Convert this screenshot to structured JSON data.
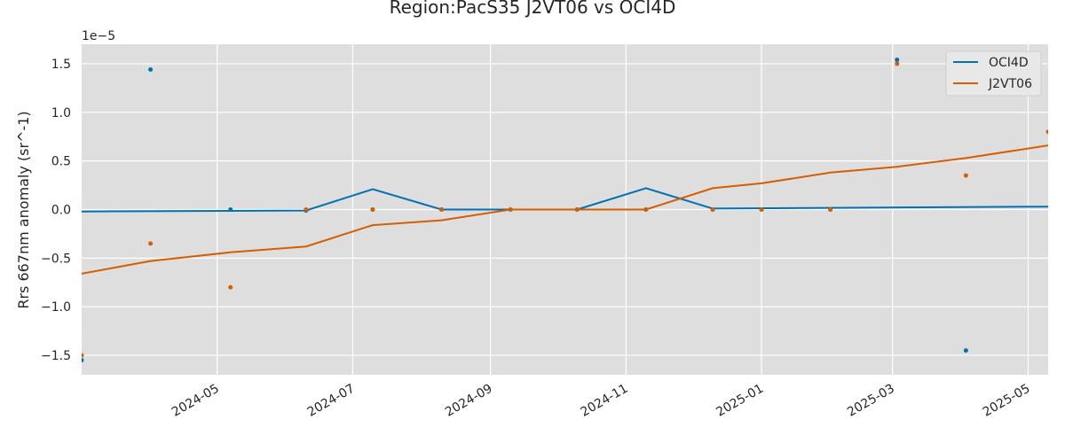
{
  "chart_data": {
    "type": "line",
    "title": "Region:PacS35 J2VT06 vs OCI4D",
    "xlabel": "",
    "ylabel": "Rrs 667nm anomaly (sr^-1)",
    "y_offset_label": "1e−5",
    "xlim": [
      "2024-03-01",
      "2025-05-10"
    ],
    "ylim": [
      -1.7,
      1.7
    ],
    "y_ticks": [
      -1.5,
      -1.0,
      -0.5,
      0.0,
      0.5,
      1.0,
      1.5
    ],
    "y_tick_labels": [
      "−1.5",
      "−1.0",
      "−0.5",
      "0.0",
      "0.5",
      "1.0",
      "1.5"
    ],
    "x_ticks": [
      "2024-05-01",
      "2024-07-01",
      "2024-09-01",
      "2024-11-01",
      "2025-01-01",
      "2025-03-01",
      "2025-05-01"
    ],
    "x_tick_labels": [
      "2024-05",
      "2024-07",
      "2024-09",
      "2024-11",
      "2025-01",
      "2025-03",
      "2025-05"
    ],
    "grid": true,
    "legend_position": "top-right",
    "series": [
      {
        "name": "OCI4D",
        "color": "#0072b2",
        "line": [
          [
            "2024-03-01",
            -0.02
          ],
          [
            "2024-06-10",
            -0.01
          ],
          [
            "2024-07-10",
            0.21
          ],
          [
            "2024-08-10",
            0.0
          ],
          [
            "2024-09-10",
            0.0
          ],
          [
            "2024-10-10",
            0.0
          ],
          [
            "2024-11-10",
            0.22
          ],
          [
            "2024-12-10",
            0.01
          ],
          [
            "2025-05-10",
            0.03
          ]
        ],
        "points": [
          [
            "2024-03-01",
            -1.55
          ],
          [
            "2024-04-01",
            1.44
          ],
          [
            "2024-05-07",
            0.0
          ],
          [
            "2024-06-10",
            -0.01
          ],
          [
            "2024-07-10",
            0.0
          ],
          [
            "2024-08-10",
            0.0
          ],
          [
            "2024-09-10",
            0.0
          ],
          [
            "2024-10-10",
            0.0
          ],
          [
            "2024-11-10",
            0.0
          ],
          [
            "2024-12-10",
            0.0
          ],
          [
            "2025-01-01",
            0.0
          ],
          [
            "2025-02-01",
            0.0
          ],
          [
            "2025-03-03",
            1.54
          ],
          [
            "2025-04-03",
            -1.45
          ]
        ]
      },
      {
        "name": "J2VT06",
        "color": "#d55e00",
        "line": [
          [
            "2024-03-01",
            -0.66
          ],
          [
            "2024-04-01",
            -0.53
          ],
          [
            "2024-05-07",
            -0.44
          ],
          [
            "2024-06-10",
            -0.38
          ],
          [
            "2024-07-10",
            -0.16
          ],
          [
            "2024-08-10",
            -0.11
          ],
          [
            "2024-09-10",
            0.0
          ],
          [
            "2024-10-10",
            0.0
          ],
          [
            "2024-11-10",
            0.0
          ],
          [
            "2024-12-10",
            0.22
          ],
          [
            "2025-01-01",
            0.27
          ],
          [
            "2025-02-01",
            0.38
          ],
          [
            "2025-03-03",
            0.44
          ],
          [
            "2025-04-03",
            0.53
          ],
          [
            "2025-05-10",
            0.66
          ]
        ],
        "points": [
          [
            "2024-03-01",
            -1.5
          ],
          [
            "2024-04-01",
            -0.35
          ],
          [
            "2024-05-07",
            -0.8
          ],
          [
            "2024-06-10",
            0.0
          ],
          [
            "2024-07-10",
            0.0
          ],
          [
            "2024-08-10",
            0.0
          ],
          [
            "2024-09-10",
            0.0
          ],
          [
            "2024-10-10",
            0.0
          ],
          [
            "2024-11-10",
            0.0
          ],
          [
            "2024-12-10",
            0.0
          ],
          [
            "2025-01-01",
            0.0
          ],
          [
            "2025-02-01",
            0.0
          ],
          [
            "2025-03-03",
            1.5
          ],
          [
            "2025-04-03",
            0.35
          ],
          [
            "2025-05-10",
            0.8
          ]
        ]
      }
    ]
  }
}
